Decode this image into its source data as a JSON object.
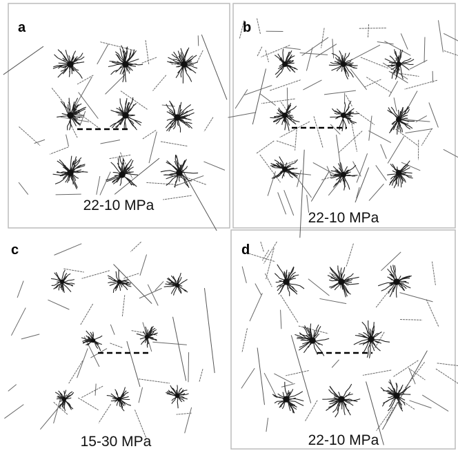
{
  "panels": [
    {
      "label": "a",
      "caption": "22-10 MPa"
    },
    {
      "label": "b",
      "caption": "22-10 MPa"
    },
    {
      "label": "c",
      "caption": "15-30 MPa"
    },
    {
      "label": "d",
      "caption": "22-10 MPa"
    }
  ]
}
